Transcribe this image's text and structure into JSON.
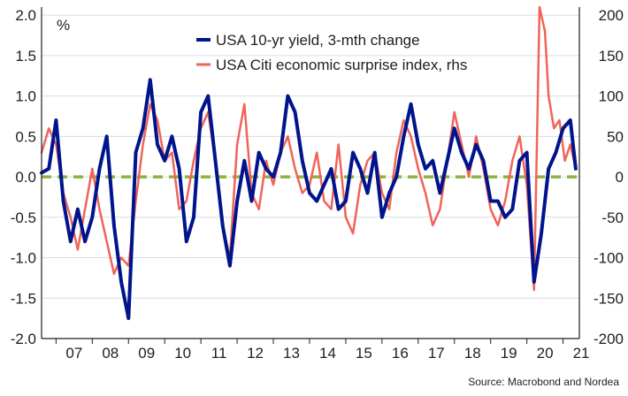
{
  "chart_data": {
    "type": "line",
    "unit_label": "%",
    "source": "Source: Macrobond and Nordea",
    "x_tick_labels": [
      "07",
      "08",
      "09",
      "10",
      "11",
      "12",
      "13",
      "14",
      "15",
      "16",
      "17",
      "18",
      "19",
      "20",
      "21"
    ],
    "x_range": [
      2006.6,
      2021.45
    ],
    "y_left": {
      "ticks": [
        "2.0",
        "1.5",
        "1.0",
        "0.5",
        "0.0",
        "-0.5",
        "-1.0",
        "-1.5",
        "-2.0"
      ],
      "range": [
        -2.0,
        2.1
      ]
    },
    "y_right": {
      "ticks": [
        "200",
        "150",
        "100",
        "50",
        "0",
        "-50",
        "-100",
        "-150",
        "-200"
      ],
      "range": [
        -200,
        210
      ]
    },
    "grid": "horizontal",
    "legend_position": "top-center",
    "colors": {
      "yield": "#00148c",
      "surprise": "#f0645a",
      "zero_line": "#8cb43c",
      "grid": "#d8dce6",
      "axis": "#1e1e1e"
    },
    "series": [
      {
        "name": "USA 10-yr yield, 3-mth change",
        "axis": "left",
        "x": [
          2006.6,
          2006.8,
          2007.0,
          2007.2,
          2007.4,
          2007.6,
          2007.8,
          2008.0,
          2008.2,
          2008.4,
          2008.6,
          2008.8,
          2009.0,
          2009.2,
          2009.4,
          2009.6,
          2009.8,
          2010.0,
          2010.2,
          2010.4,
          2010.6,
          2010.8,
          2011.0,
          2011.2,
          2011.4,
          2011.6,
          2011.8,
          2012.0,
          2012.2,
          2012.4,
          2012.6,
          2012.8,
          2013.0,
          2013.2,
          2013.4,
          2013.6,
          2013.8,
          2014.0,
          2014.2,
          2014.4,
          2014.6,
          2014.8,
          2015.0,
          2015.2,
          2015.4,
          2015.6,
          2015.8,
          2016.0,
          2016.2,
          2016.4,
          2016.6,
          2016.8,
          2017.0,
          2017.2,
          2017.4,
          2017.6,
          2017.8,
          2018.0,
          2018.2,
          2018.4,
          2018.6,
          2018.8,
          2019.0,
          2019.2,
          2019.4,
          2019.6,
          2019.8,
          2020.0,
          2020.2,
          2020.4,
          2020.6,
          2020.8,
          2021.0,
          2021.2,
          2021.35
        ],
        "y": [
          0.05,
          0.1,
          0.7,
          -0.3,
          -0.8,
          -0.4,
          -0.8,
          -0.5,
          0.1,
          0.5,
          -0.6,
          -1.3,
          -1.75,
          0.3,
          0.6,
          1.2,
          0.4,
          0.2,
          0.5,
          0.1,
          -0.8,
          -0.5,
          0.8,
          1.0,
          0.2,
          -0.6,
          -1.1,
          -0.3,
          0.2,
          -0.3,
          0.3,
          0.1,
          0.0,
          0.3,
          1.0,
          0.8,
          0.2,
          -0.2,
          -0.3,
          -0.1,
          0.1,
          -0.4,
          -0.3,
          0.3,
          0.1,
          -0.2,
          0.3,
          -0.5,
          -0.2,
          0.0,
          0.5,
          0.9,
          0.4,
          0.1,
          0.2,
          -0.2,
          0.2,
          0.6,
          0.3,
          0.1,
          0.4,
          0.2,
          -0.3,
          -0.3,
          -0.5,
          -0.4,
          0.2,
          0.3,
          -1.3,
          -0.7,
          0.1,
          0.3,
          0.6,
          0.7,
          0.1
        ]
      },
      {
        "name": "USA Citi economic surprise index, rhs",
        "axis": "right",
        "x": [
          2006.6,
          2006.8,
          2007.0,
          2007.2,
          2007.4,
          2007.6,
          2007.8,
          2008.0,
          2008.2,
          2008.4,
          2008.6,
          2008.8,
          2009.0,
          2009.2,
          2009.4,
          2009.6,
          2009.8,
          2010.0,
          2010.2,
          2010.4,
          2010.6,
          2010.8,
          2011.0,
          2011.2,
          2011.4,
          2011.6,
          2011.8,
          2012.0,
          2012.2,
          2012.4,
          2012.6,
          2012.8,
          2013.0,
          2013.2,
          2013.4,
          2013.6,
          2013.8,
          2014.0,
          2014.2,
          2014.4,
          2014.6,
          2014.8,
          2015.0,
          2015.2,
          2015.4,
          2015.6,
          2015.8,
          2016.0,
          2016.2,
          2016.4,
          2016.6,
          2016.8,
          2017.0,
          2017.2,
          2017.4,
          2017.6,
          2017.8,
          2018.0,
          2018.2,
          2018.4,
          2018.6,
          2018.8,
          2019.0,
          2019.2,
          2019.4,
          2019.6,
          2019.8,
          2020.0,
          2020.2,
          2020.35,
          2020.5,
          2020.6,
          2020.75,
          2020.9,
          2021.05,
          2021.2,
          2021.35
        ],
        "y": [
          30,
          60,
          40,
          -20,
          -50,
          -90,
          -40,
          10,
          -40,
          -80,
          -120,
          -100,
          -110,
          -30,
          40,
          90,
          70,
          20,
          30,
          -40,
          -30,
          20,
          60,
          80,
          20,
          -60,
          -100,
          40,
          90,
          -20,
          -40,
          20,
          -10,
          30,
          50,
          10,
          -20,
          -10,
          30,
          -30,
          -40,
          40,
          -50,
          -70,
          -10,
          20,
          30,
          -20,
          -40,
          30,
          70,
          50,
          10,
          -20,
          -60,
          -40,
          20,
          80,
          40,
          0,
          50,
          10,
          -40,
          -60,
          -30,
          20,
          50,
          -10,
          -140,
          210,
          180,
          100,
          60,
          70,
          20,
          40,
          10
        ]
      }
    ]
  }
}
